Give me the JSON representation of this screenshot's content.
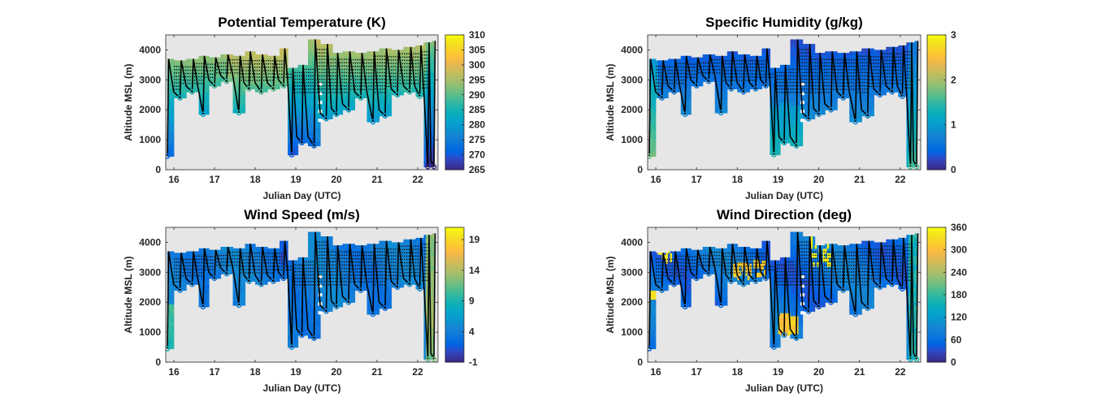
{
  "chart_data": [
    {
      "type": "heatmap",
      "title": "Potential Temperature (K)",
      "xlabel": "Julian Day (UTC)",
      "ylabel": "Altitude MSL (m)",
      "xlim": [
        15.8,
        22.5
      ],
      "ylim": [
        0,
        4500
      ],
      "xticks": [
        "16",
        "17",
        "18",
        "19",
        "20",
        "21",
        "22"
      ],
      "yticks": [
        "0",
        "1000",
        "2000",
        "3000",
        "4000"
      ],
      "clim": [
        265,
        310
      ],
      "colorbar_ticks": [
        "265",
        "270",
        "275",
        "280",
        "285",
        "290",
        "295",
        "300",
        "305",
        "310"
      ],
      "colormap": "parula",
      "background": "#e6e6e6",
      "field": "temp"
    },
    {
      "type": "heatmap",
      "title": "Specific Humidity (g/kg)",
      "xlabel": "Julian Day (UTC)",
      "ylabel": "Altitude MSL (m)",
      "xlim": [
        15.8,
        22.5
      ],
      "ylim": [
        0,
        4500
      ],
      "xticks": [
        "16",
        "17",
        "18",
        "19",
        "20",
        "21",
        "22"
      ],
      "yticks": [
        "0",
        "1000",
        "2000",
        "3000",
        "4000"
      ],
      "clim": [
        0,
        3
      ],
      "colorbar_ticks": [
        "0",
        "1",
        "2",
        "3"
      ],
      "colormap": "parula",
      "background": "#e6e6e6",
      "field": "humid"
    },
    {
      "type": "heatmap",
      "title": "Wind Speed (m/s)",
      "xlabel": "Julian Day (UTC)",
      "ylabel": "Altitude MSL (m)",
      "xlim": [
        15.8,
        22.5
      ],
      "ylim": [
        0,
        4500
      ],
      "xticks": [
        "16",
        "17",
        "18",
        "19",
        "20",
        "21",
        "22"
      ],
      "yticks": [
        "0",
        "1000",
        "2000",
        "3000",
        "4000"
      ],
      "clim": [
        -1,
        21
      ],
      "colorbar_ticks": [
        "-1",
        "4",
        "9",
        "14",
        "19"
      ],
      "colormap": "parula",
      "background": "#e6e6e6",
      "field": "speed"
    },
    {
      "type": "heatmap",
      "title": "Wind Direction (deg)",
      "xlabel": "Julian Day (UTC)",
      "ylabel": "Altitude MSL (m)",
      "xlim": [
        15.8,
        22.5
      ],
      "ylim": [
        0,
        4500
      ],
      "xticks": [
        "16",
        "17",
        "18",
        "19",
        "20",
        "21",
        "22"
      ],
      "yticks": [
        "0",
        "1000",
        "2000",
        "3000",
        "4000"
      ],
      "clim": [
        0,
        360
      ],
      "colorbar_ticks": [
        "0",
        "60",
        "120",
        "180",
        "240",
        "300",
        "360"
      ],
      "colormap": "parula",
      "background": "#e6e6e6",
      "field": "dir"
    }
  ],
  "profiles": [
    {
      "day": 15.84,
      "bottom": 450,
      "top": 3700
    },
    {
      "day": 16.15,
      "bottom": 2400,
      "top": 3650
    },
    {
      "day": 16.45,
      "bottom": 2600,
      "top": 3700
    },
    {
      "day": 16.72,
      "bottom": 1850,
      "top": 3800
    },
    {
      "day": 17.0,
      "bottom": 2800,
      "top": 3750
    },
    {
      "day": 17.3,
      "bottom": 2950,
      "top": 3850
    },
    {
      "day": 17.6,
      "bottom": 1900,
      "top": 3800
    },
    {
      "day": 17.85,
      "bottom": 2700,
      "top": 3950
    },
    {
      "day": 18.15,
      "bottom": 2600,
      "top": 3850
    },
    {
      "day": 18.45,
      "bottom": 2700,
      "top": 3800
    },
    {
      "day": 18.7,
      "bottom": 2800,
      "top": 4050
    },
    {
      "day": 18.9,
      "bottom": 500,
      "top": 3400
    },
    {
      "day": 19.15,
      "bottom": 900,
      "top": 3500
    },
    {
      "day": 19.45,
      "bottom": 800,
      "top": 4350
    },
    {
      "day": 19.75,
      "bottom": 1700,
      "top": 4200
    },
    {
      "day": 20.0,
      "bottom": 1850,
      "top": 3900
    },
    {
      "day": 20.3,
      "bottom": 2000,
      "top": 3950
    },
    {
      "day": 20.6,
      "bottom": 2400,
      "top": 3900
    },
    {
      "day": 20.9,
      "bottom": 1600,
      "top": 3950
    },
    {
      "day": 21.2,
      "bottom": 1800,
      "top": 4050
    },
    {
      "day": 21.5,
      "bottom": 2500,
      "top": 4000
    },
    {
      "day": 21.8,
      "bottom": 2600,
      "top": 4100
    },
    {
      "day": 22.05,
      "bottom": 2450,
      "top": 4150
    },
    {
      "day": 22.25,
      "bottom": 100,
      "top": 4250
    },
    {
      "day": 22.4,
      "bottom": 100,
      "top": 4300
    }
  ]
}
